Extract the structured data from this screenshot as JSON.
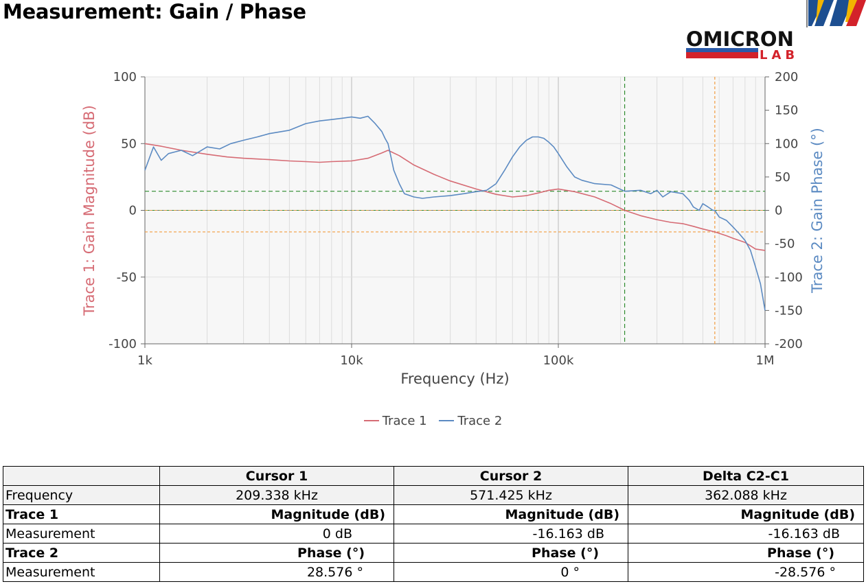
{
  "page": {
    "title": "Measurement: Gain / Phase"
  },
  "logo": {
    "line1": "OMICRON",
    "line2": "LAB"
  },
  "colors": {
    "trace1": "#d66b74",
    "trace2": "#5b8ac2",
    "cursor1": "#2e8b2e",
    "cursor2": "#f29b3d",
    "plot_bg": "#f7f7f7"
  },
  "chart_data": {
    "type": "line",
    "xlabel": "Frequency (Hz)",
    "ylabel_left": "Trace 1: Gain Magnitude (dB)",
    "ylabel_right": "Trace 2: Gain Phase (°)",
    "x_scale": "log",
    "xlim": [
      1000,
      1000000
    ],
    "ylim_left": [
      -100,
      100
    ],
    "ylim_right": [
      -200,
      200
    ],
    "x_ticks": [
      1000,
      10000,
      100000,
      1000000
    ],
    "x_tick_labels": [
      "1k",
      "10k",
      "100k",
      "1M"
    ],
    "y_ticks_left": [
      -100,
      -50,
      0,
      50,
      100
    ],
    "y_tick_labels_left": [
      "-100",
      "-50",
      "0",
      "50",
      "100"
    ],
    "y_ticks_right": [
      -200,
      -150,
      -100,
      -50,
      0,
      50,
      100,
      150,
      200
    ],
    "y_tick_labels_right": [
      "-200",
      "-150",
      "-100",
      "-50",
      "0",
      "50",
      "100",
      "150",
      "200"
    ],
    "grid": true,
    "legend_position": "bottom",
    "series": [
      {
        "name": "Trace 1",
        "axis": "left",
        "x": [
          1000,
          1200,
          1500,
          2000,
          2500,
          3000,
          4000,
          5000,
          6000,
          7000,
          8000,
          10000,
          12000,
          14000,
          15000,
          17000,
          20000,
          25000,
          30000,
          40000,
          50000,
          60000,
          70000,
          80000,
          90000,
          100000,
          120000,
          150000,
          180000,
          209338,
          250000,
          300000,
          350000,
          400000,
          450000,
          500000,
          571425,
          650000,
          700000,
          800000,
          900000,
          1000000
        ],
        "y": [
          50,
          48,
          45,
          42,
          40,
          39,
          38,
          37,
          36.5,
          36,
          36.5,
          37,
          39,
          43,
          45,
          41,
          34,
          27,
          22,
          16,
          12,
          10,
          11,
          13,
          15,
          16,
          14,
          10,
          5,
          0,
          -4,
          -7,
          -9,
          -10,
          -12,
          -14,
          -16.163,
          -19,
          -21,
          -24,
          -29,
          -30
        ]
      },
      {
        "name": "Trace 2",
        "axis": "right",
        "x": [
          1000,
          1100,
          1200,
          1300,
          1500,
          1700,
          2000,
          2300,
          2600,
          3000,
          3500,
          4000,
          5000,
          6000,
          7000,
          8000,
          9000,
          10000,
          11000,
          12000,
          13000,
          14000,
          14500,
          15000,
          15500,
          16000,
          17000,
          18000,
          20000,
          22000,
          25000,
          30000,
          35000,
          40000,
          45000,
          50000,
          55000,
          60000,
          65000,
          70000,
          75000,
          80000,
          85000,
          90000,
          95000,
          100000,
          110000,
          120000,
          130000,
          150000,
          180000,
          209338,
          250000,
          280000,
          300000,
          320000,
          350000,
          400000,
          430000,
          450000,
          480000,
          500000,
          530000,
          560000,
          571425,
          600000,
          650000,
          700000,
          750000,
          800000,
          850000,
          900000,
          950000,
          1000000
        ],
        "y": [
          60,
          95,
          75,
          85,
          90,
          82,
          95,
          92,
          100,
          105,
          110,
          115,
          120,
          130,
          134,
          136,
          138,
          140,
          138,
          141,
          130,
          118,
          108,
          100,
          80,
          60,
          40,
          25,
          20,
          18,
          20,
          22,
          25,
          28,
          30,
          40,
          60,
          80,
          95,
          105,
          110,
          110,
          108,
          102,
          95,
          85,
          65,
          50,
          45,
          40,
          38,
          28.576,
          30,
          25,
          30,
          20,
          28,
          25,
          15,
          5,
          0,
          10,
          5,
          0,
          0,
          -10,
          -15,
          -25,
          -35,
          -45,
          -60,
          -85,
          -110,
          -150
        ]
      }
    ],
    "cursors": [
      {
        "name": "Cursor 1",
        "x": 209338,
        "trace1": 0,
        "trace2": 28.576
      },
      {
        "name": "Cursor 2",
        "x": 571425,
        "trace1": -16.163,
        "trace2": 0
      }
    ]
  },
  "legend": {
    "trace1": "Trace 1",
    "trace2": "Trace 2"
  },
  "table": {
    "headers": [
      "",
      "Cursor 1",
      "Cursor 2",
      "Delta C2-C1"
    ],
    "frequency": {
      "label": "Frequency",
      "values": [
        "209.338 kHz",
        "571.425 kHz",
        "362.088 kHz"
      ]
    },
    "trace1": {
      "label": "Trace 1",
      "unit_label": "Magnitude (dB)",
      "measurement_label": "Measurement",
      "values": [
        "0 dB",
        "-16.163 dB",
        "-16.163 dB"
      ]
    },
    "trace2": {
      "label": "Trace 2",
      "unit_label": "Phase (°)",
      "measurement_label": "Measurement",
      "values": [
        "28.576 °",
        "0 °",
        "-28.576 °"
      ]
    }
  }
}
